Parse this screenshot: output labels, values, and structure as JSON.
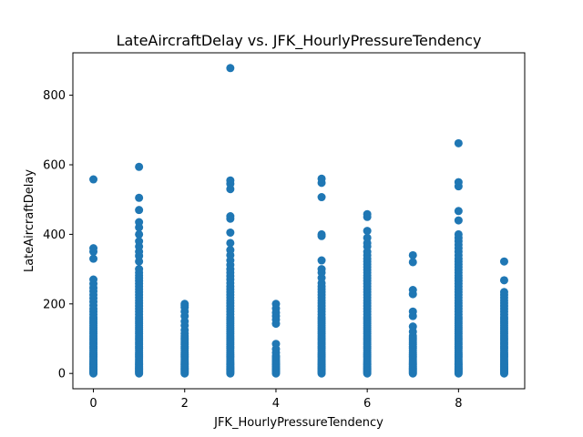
{
  "chart_data": {
    "type": "scatter",
    "title": "LateAircraftDelay vs. JFK_HourlyPressureTendency",
    "xlabel": "JFK_HourlyPressureTendency",
    "ylabel": "LateAircraftDelay",
    "xlim": [
      -0.45,
      9.45
    ],
    "ylim": [
      -44,
      922
    ],
    "xticks": [
      0,
      2,
      4,
      6,
      8
    ],
    "yticks": [
      0,
      200,
      400,
      600,
      800
    ],
    "grid": false,
    "marker_color": "#1f77b4",
    "series": [
      {
        "points": [
          {
            "x": 0,
            "y": [
              0,
              3,
              6,
              9,
              12,
              15,
              18,
              21,
              25,
              28,
              32,
              36,
              40,
              45,
              50,
              55,
              60,
              66,
              72,
              78,
              84,
              90,
              96,
              102,
              108,
              114,
              120,
              126,
              132,
              138,
              144,
              150,
              156,
              162,
              170,
              178,
              186,
              196,
              206,
              216,
              226,
              236,
              246,
              258,
              270,
              330,
              350,
              360,
              558
            ]
          },
          {
            "x": 1,
            "y": [
              0,
              3,
              6,
              9,
              12,
              15,
              18,
              21,
              25,
              28,
              32,
              36,
              40,
              45,
              50,
              55,
              60,
              66,
              72,
              78,
              84,
              90,
              96,
              102,
              108,
              114,
              120,
              126,
              132,
              138,
              144,
              150,
              156,
              162,
              170,
              178,
              186,
              194,
              202,
              210,
              218,
              226,
              234,
              242,
              250,
              258,
              266,
              274,
              282,
              290,
              300,
              322,
              338,
              350,
              365,
              380,
              400,
              420,
              435,
              470,
              505,
              594
            ]
          },
          {
            "x": 2,
            "y": [
              0,
              3,
              6,
              9,
              12,
              15,
              18,
              21,
              25,
              28,
              32,
              36,
              40,
              45,
              50,
              55,
              60,
              66,
              72,
              78,
              84,
              90,
              96,
              102,
              108,
              115,
              125,
              138,
              150,
              165,
              178,
              190,
              196,
              200
            ]
          },
          {
            "x": 3,
            "y": [
              0,
              3,
              6,
              9,
              12,
              15,
              18,
              21,
              25,
              28,
              32,
              36,
              40,
              45,
              50,
              55,
              60,
              66,
              72,
              78,
              84,
              90,
              96,
              102,
              108,
              114,
              120,
              126,
              132,
              138,
              144,
              150,
              156,
              162,
              170,
              178,
              186,
              194,
              202,
              210,
              218,
              226,
              234,
              242,
              250,
              260,
              270,
              280,
              290,
              300,
              312,
              325,
              340,
              355,
              375,
              405,
              445,
              452,
              530,
              545,
              555,
              878
            ]
          },
          {
            "x": 4,
            "y": [
              0,
              3,
              6,
              9,
              12,
              15,
              18,
              21,
              25,
              28,
              32,
              36,
              40,
              45,
              50,
              60,
              70,
              85,
              143,
              155,
              165,
              175,
              187,
              200
            ]
          },
          {
            "x": 5,
            "y": [
              0,
              3,
              6,
              9,
              12,
              15,
              18,
              21,
              25,
              28,
              32,
              36,
              40,
              45,
              50,
              55,
              60,
              66,
              72,
              78,
              84,
              90,
              96,
              102,
              108,
              114,
              120,
              126,
              132,
              138,
              144,
              150,
              156,
              162,
              170,
              178,
              186,
              194,
              202,
              210,
              218,
              226,
              234,
              242,
              250,
              260,
              275,
              290,
              300,
              325,
              395,
              400,
              507,
              548,
              560
            ]
          },
          {
            "x": 6,
            "y": [
              0,
              3,
              6,
              9,
              12,
              15,
              18,
              21,
              25,
              28,
              32,
              36,
              40,
              45,
              50,
              55,
              60,
              66,
              72,
              78,
              84,
              90,
              96,
              102,
              108,
              114,
              120,
              126,
              132,
              138,
              144,
              150,
              156,
              162,
              170,
              178,
              186,
              194,
              202,
              210,
              218,
              226,
              234,
              242,
              250,
              258,
              266,
              274,
              282,
              290,
              298,
              306,
              314,
              322,
              330,
              340,
              350,
              365,
              375,
              390,
              410,
              450,
              458
            ]
          },
          {
            "x": 7,
            "y": [
              0,
              3,
              6,
              9,
              12,
              15,
              18,
              21,
              25,
              28,
              32,
              36,
              40,
              45,
              50,
              55,
              60,
              66,
              72,
              78,
              84,
              90,
              96,
              102,
              108,
              120,
              135,
              165,
              178,
              228,
              240,
              320,
              340
            ]
          },
          {
            "x": 8,
            "y": [
              0,
              3,
              6,
              9,
              12,
              15,
              18,
              21,
              25,
              28,
              32,
              36,
              40,
              45,
              50,
              55,
              60,
              66,
              72,
              78,
              84,
              90,
              96,
              102,
              108,
              114,
              120,
              126,
              132,
              138,
              144,
              150,
              156,
              162,
              170,
              178,
              186,
              194,
              202,
              210,
              218,
              226,
              234,
              242,
              250,
              258,
              266,
              274,
              282,
              290,
              298,
              306,
              314,
              322,
              330,
              340,
              350,
              360,
              370,
              380,
              390,
              400,
              440,
              467,
              538,
              550,
              662
            ]
          },
          {
            "x": 9,
            "y": [
              0,
              3,
              6,
              9,
              12,
              15,
              18,
              21,
              25,
              28,
              32,
              36,
              40,
              45,
              50,
              55,
              60,
              66,
              72,
              78,
              84,
              90,
              96,
              102,
              108,
              114,
              120,
              126,
              132,
              138,
              144,
              150,
              156,
              162,
              170,
              178,
              186,
              194,
              202,
              210,
              218,
              226,
              234,
              268,
              322
            ]
          }
        ]
      }
    ]
  }
}
